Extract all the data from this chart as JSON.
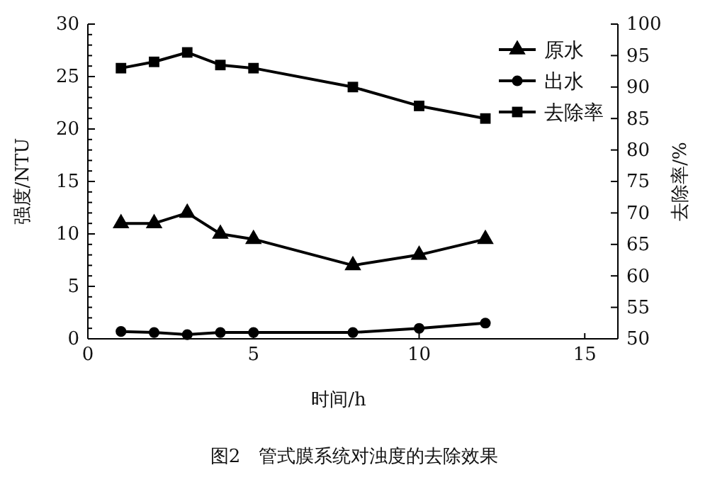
{
  "chart_data": {
    "type": "line",
    "xlabel": "时间/h",
    "ylabel": "强度/NTU",
    "y2label": "去除率/%",
    "annotations": [
      "图2　管式膜系统对浊度的去除效果"
    ],
    "x": [
      1,
      2,
      3,
      4,
      5,
      8,
      10,
      12
    ],
    "series": [
      {
        "name": "原水",
        "color": "#000000",
        "marker": "triangle",
        "values": [
          11,
          11,
          12,
          10,
          9.5,
          7,
          8,
          9.5
        ]
      },
      {
        "name": "出水",
        "color": "#000000",
        "marker": "circle",
        "values": [
          0.7,
          0.6,
          0.4,
          0.6,
          0.6,
          0.6,
          1.0,
          1.5
        ]
      },
      {
        "name": "去除率",
        "color": "#000000",
        "marker": "square",
        "axis": "y2",
        "values": [
          93,
          94,
          95.5,
          93.5,
          93,
          90,
          87,
          85
        ]
      }
    ],
    "xlim": [
      0,
      16
    ],
    "xticks": [
      0,
      5,
      10,
      15
    ],
    "ylim": [
      0,
      30
    ],
    "yticks": [
      0,
      5,
      10,
      15,
      20,
      25,
      30
    ],
    "y2lim": [
      50,
      100
    ],
    "y2ticks": [
      50,
      55,
      60,
      65,
      70,
      75,
      80,
      85,
      90,
      95,
      100
    ],
    "legend": "top right",
    "line_style": "solid",
    "grid": false
  }
}
